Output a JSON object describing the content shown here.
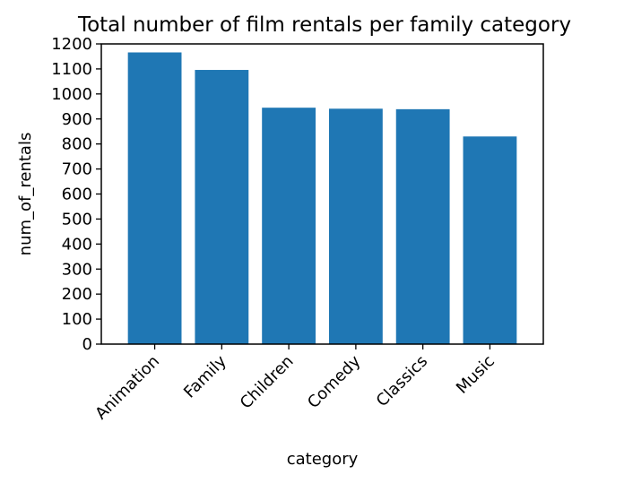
{
  "chart_data": {
    "type": "bar",
    "title": "Total number of film rentals per family category",
    "xlabel": "category",
    "ylabel": "num_of_rentals",
    "categories": [
      "Animation",
      "Family",
      "Children",
      "Comedy",
      "Classics",
      "Music"
    ],
    "values": [
      1166,
      1096,
      945,
      941,
      939,
      830
    ],
    "ylim": [
      0,
      1200
    ],
    "yticks": [
      0,
      100,
      200,
      300,
      400,
      500,
      600,
      700,
      800,
      900,
      1000,
      1100,
      1200
    ],
    "grid": false,
    "legend": "none",
    "bar_color": "#1f77b4"
  }
}
